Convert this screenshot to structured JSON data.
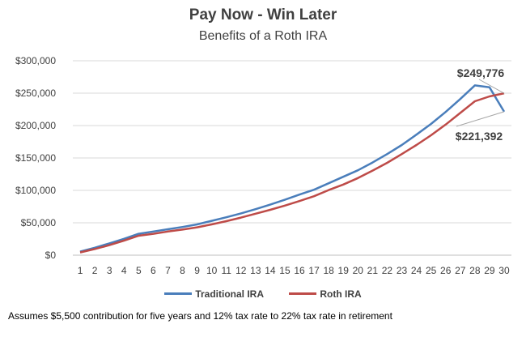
{
  "chart_data": {
    "type": "line",
    "title": "Pay Now - Win Later",
    "subtitle": "Benefits  of a Roth IRA",
    "xlabel": "",
    "ylabel": "",
    "x": [
      1,
      2,
      3,
      4,
      5,
      6,
      7,
      8,
      9,
      10,
      11,
      12,
      13,
      14,
      15,
      16,
      17,
      18,
      19,
      20,
      21,
      22,
      23,
      24,
      25,
      26,
      27,
      28,
      29,
      30
    ],
    "ylim": [
      0,
      300000
    ],
    "yticks": [
      0,
      50000,
      100000,
      150000,
      200000,
      250000,
      300000
    ],
    "ytick_labels": [
      "$0",
      "$50,000",
      "$100,000",
      "$150,000",
      "$200,000",
      "$250,000",
      "$300,000"
    ],
    "grid": true,
    "legend_position": "bottom",
    "series": [
      {
        "name": "Traditional IRA",
        "color": "#4a7ebb",
        "values": [
          5500,
          11500,
          18200,
          25200,
          33000,
          36500,
          40000,
          43500,
          47500,
          53000,
          58500,
          64500,
          71000,
          78000,
          85500,
          93500,
          101000,
          111000,
          121000,
          131000,
          143000,
          156000,
          170000,
          186000,
          202500,
          221000,
          241000,
          262000,
          259000,
          221392
        ]
      },
      {
        "name": "Roth IRA",
        "color": "#be4b48",
        "values": [
          4300,
          9500,
          15500,
          22500,
          30000,
          33000,
          36500,
          39500,
          43000,
          47500,
          52500,
          58000,
          64000,
          70000,
          76500,
          83500,
          91000,
          100500,
          109000,
          119000,
          130500,
          142500,
          156000,
          170000,
          185000,
          201500,
          219500,
          237500,
          245000,
          249776
        ]
      }
    ],
    "annotations": [
      {
        "text": "$249,776",
        "series": 1,
        "index": 29
      },
      {
        "text": "$221,392",
        "series": 0,
        "index": 29
      }
    ]
  },
  "footnote": "Assumes $5,500 contribution for five years and 12% tax rate to 22% tax rate in retirement"
}
